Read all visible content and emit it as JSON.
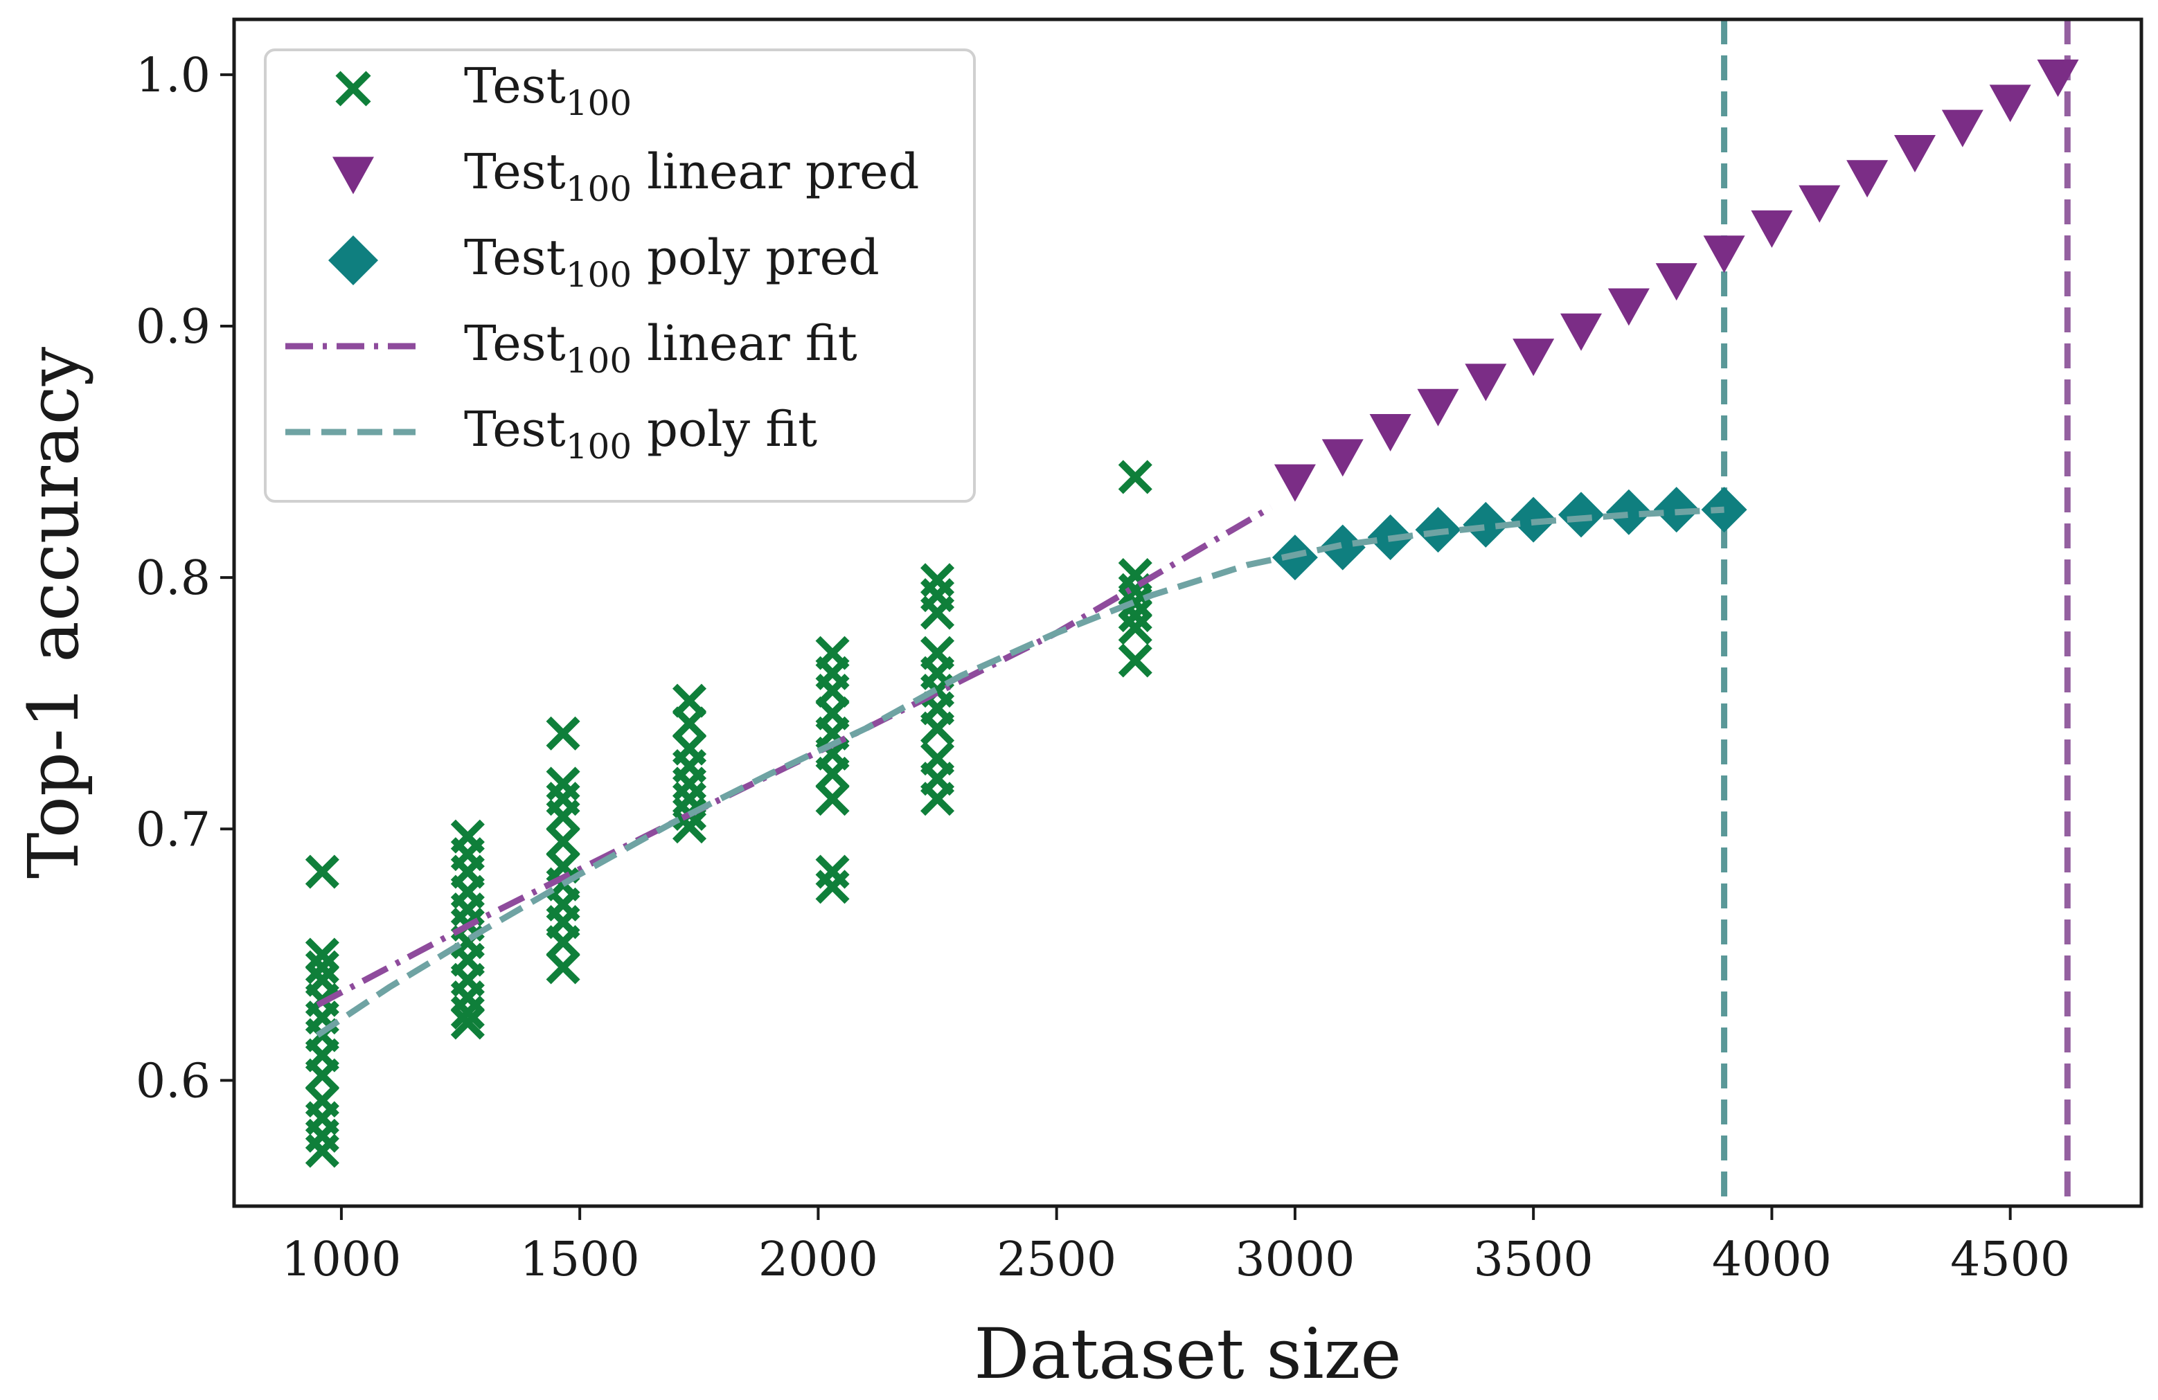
{
  "chart_data": {
    "type": "scatter",
    "xlabel": "Dataset size",
    "ylabel": "Top-1 accuracy",
    "xlim": [
      775,
      4775
    ],
    "ylim": [
      0.55,
      1.022
    ],
    "xticks": [
      1000,
      1500,
      2000,
      2500,
      3000,
      3500,
      4000,
      4500
    ],
    "yticks": [
      0.6,
      0.7,
      0.8,
      0.9,
      1.0
    ],
    "x_tick_labels": [
      "1000",
      "1500",
      "2000",
      "2500",
      "3000",
      "3500",
      "4000",
      "4500"
    ],
    "y_tick_labels": [
      "0.6",
      "0.7",
      "0.8",
      "0.9",
      "1.0"
    ],
    "grid": false,
    "legend_position": "top-left",
    "colors": {
      "test": "#0f7f3a",
      "linear": "#7b2d86",
      "poly": "#0f7f7f",
      "poly_fit": "#6fa3a3",
      "linear_fit": "#8e4b9c",
      "vline_poly": "#5a9898",
      "vline_linear": "#9460a0"
    },
    "series": [
      {
        "name": "Test",
        "name_sub": "100",
        "marker": "x",
        "points": [
          [
            960,
            0.683
          ],
          [
            960,
            0.65
          ],
          [
            960,
            0.645
          ],
          [
            960,
            0.64
          ],
          [
            960,
            0.632
          ],
          [
            960,
            0.625
          ],
          [
            960,
            0.618
          ],
          [
            960,
            0.61
          ],
          [
            960,
            0.602
          ],
          [
            960,
            0.592
          ],
          [
            960,
            0.585
          ],
          [
            960,
            0.578
          ],
          [
            960,
            0.572
          ],
          [
            1265,
            0.697
          ],
          [
            1265,
            0.69
          ],
          [
            1265,
            0.683
          ],
          [
            1265,
            0.675
          ],
          [
            1265,
            0.668
          ],
          [
            1265,
            0.662
          ],
          [
            1265,
            0.655
          ],
          [
            1265,
            0.648
          ],
          [
            1265,
            0.64
          ],
          [
            1265,
            0.633
          ],
          [
            1265,
            0.627
          ],
          [
            1265,
            0.623
          ],
          [
            1465,
            0.738
          ],
          [
            1465,
            0.718
          ],
          [
            1465,
            0.712
          ],
          [
            1465,
            0.705
          ],
          [
            1465,
            0.695
          ],
          [
            1465,
            0.685
          ],
          [
            1465,
            0.678
          ],
          [
            1465,
            0.67
          ],
          [
            1465,
            0.663
          ],
          [
            1465,
            0.655
          ],
          [
            1465,
            0.645
          ],
          [
            1730,
            0.751
          ],
          [
            1730,
            0.742
          ],
          [
            1730,
            0.732
          ],
          [
            1730,
            0.725
          ],
          [
            1730,
            0.718
          ],
          [
            1730,
            0.712
          ],
          [
            1730,
            0.706
          ],
          [
            1730,
            0.701
          ],
          [
            2030,
            0.77
          ],
          [
            2030,
            0.762
          ],
          [
            2030,
            0.755
          ],
          [
            2030,
            0.746
          ],
          [
            2030,
            0.738
          ],
          [
            2030,
            0.73
          ],
          [
            2030,
            0.722
          ],
          [
            2030,
            0.712
          ],
          [
            2030,
            0.683
          ],
          [
            2030,
            0.677
          ],
          [
            2250,
            0.799
          ],
          [
            2250,
            0.793
          ],
          [
            2250,
            0.786
          ],
          [
            2250,
            0.77
          ],
          [
            2250,
            0.762
          ],
          [
            2250,
            0.755
          ],
          [
            2250,
            0.748
          ],
          [
            2250,
            0.74
          ],
          [
            2250,
            0.728
          ],
          [
            2250,
            0.72
          ],
          [
            2250,
            0.712
          ],
          [
            2665,
            0.84
          ],
          [
            2665,
            0.801
          ],
          [
            2665,
            0.795
          ],
          [
            2665,
            0.79
          ],
          [
            2665,
            0.785
          ],
          [
            2665,
            0.78
          ],
          [
            2665,
            0.767
          ]
        ]
      },
      {
        "name": "Test",
        "name_sub": "100",
        "name_suffix": "linear pred",
        "marker": "triangle-down",
        "x": [
          3000,
          3100,
          3200,
          3300,
          3400,
          3500,
          3600,
          3700,
          3800,
          3900,
          4000,
          4100,
          4200,
          4300,
          4400,
          4500,
          4600
        ],
        "y": [
          0.838,
          0.848,
          0.858,
          0.868,
          0.878,
          0.888,
          0.898,
          0.908,
          0.918,
          0.929,
          0.939,
          0.949,
          0.959,
          0.969,
          0.979,
          0.989,
          0.999
        ]
      },
      {
        "name": "Test",
        "name_sub": "100",
        "name_suffix": "poly pred",
        "marker": "diamond",
        "x": [
          3000,
          3100,
          3200,
          3300,
          3400,
          3500,
          3600,
          3700,
          3800,
          3900
        ],
        "y": [
          0.808,
          0.812,
          0.816,
          0.819,
          0.821,
          0.823,
          0.825,
          0.826,
          0.827,
          0.827
        ]
      },
      {
        "name": "Test",
        "name_sub": "100",
        "name_suffix": "linear fit",
        "line": "dashdot",
        "x": [
          950,
          1300,
          1700,
          2100,
          2500,
          2950
        ],
        "y": [
          0.63,
          0.665,
          0.703,
          0.74,
          0.778,
          0.828
        ]
      },
      {
        "name": "Test",
        "name_sub": "100",
        "name_suffix": "poly fit",
        "line": "dashed",
        "x": [
          950,
          1100,
          1300,
          1500,
          1700,
          1900,
          2100,
          2300,
          2500,
          2700,
          2900,
          3100,
          3300,
          3500,
          3700,
          3900
        ],
        "y": [
          0.618,
          0.637,
          0.66,
          0.682,
          0.703,
          0.722,
          0.74,
          0.761,
          0.778,
          0.793,
          0.805,
          0.813,
          0.818,
          0.822,
          0.825,
          0.827
        ]
      }
    ],
    "vertical_lines": [
      {
        "x": 3900,
        "color_key": "vline_poly"
      },
      {
        "x": 4620,
        "color_key": "vline_linear"
      }
    ]
  }
}
